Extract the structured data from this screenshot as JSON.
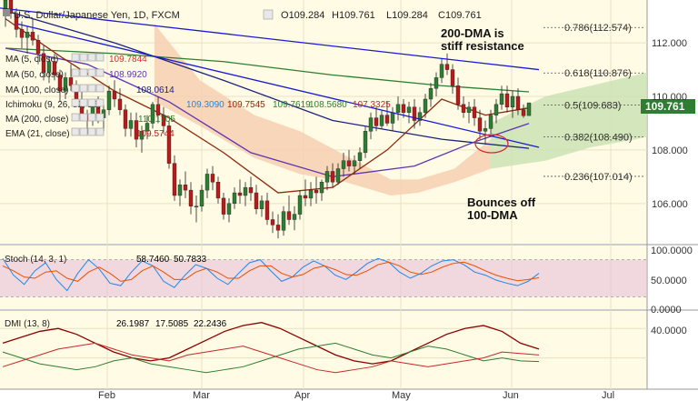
{
  "header": {
    "symbol": "U.S. Dollar/Japanese Yen, 1D, FXCM",
    "ohlc": [
      {
        "label": "O",
        "value": "109.284"
      },
      {
        "label": "H",
        "value": "109.761"
      },
      {
        "label": "L",
        "value": "109.284"
      },
      {
        "label": "C",
        "value": "109.761"
      }
    ]
  },
  "indicators": [
    {
      "label": "MA (5, close)",
      "values": [
        "109.7844"
      ],
      "colors": [
        "#d32f2f"
      ]
    },
    {
      "label": "MA (50, close)",
      "values": [
        "108.9920"
      ],
      "colors": [
        "#5e35b1"
      ]
    },
    {
      "label": "MA (100, close)",
      "values": [
        "108.0614"
      ],
      "colors": [
        "#1a237e"
      ]
    },
    {
      "label": "Ichimoku (9, 26, 52, 26)",
      "values": [
        "109.3090",
        "109.7545",
        "109.7619",
        "108.5680",
        "107.3325"
      ],
      "colors": [
        "#1e88e5",
        "#8d2a0b",
        "#2e7d32",
        "#2e7d32",
        "#c62828"
      ]
    },
    {
      "label": "MA (200, close)",
      "values": [
        "110.1705"
      ],
      "colors": [
        "#2e7d32"
      ]
    },
    {
      "label": "EMA (21, close)",
      "values": [
        "109.5744"
      ],
      "colors": [
        "#b71c1c"
      ]
    }
  ],
  "annotations": {
    "resistance": [
      "200-DMA is",
      "stiff resistance"
    ],
    "bounce": [
      "Bounces off",
      "100-DMA"
    ]
  },
  "fib_levels": [
    {
      "label": "0.786(112.574)",
      "value": 112.574,
      "color": "#333333"
    },
    {
      "label": "0.618(110.876)",
      "value": 110.876,
      "color": "#333333"
    },
    {
      "label": "0.5(109.683)",
      "value": 109.683,
      "color": "#4a7fc1"
    },
    {
      "label": "0.382(108.490)",
      "value": 108.49,
      "color": "#333333"
    },
    {
      "label": "0.236(107.014)",
      "value": 107.014,
      "color": "#333333"
    }
  ],
  "price_badge": "109.761",
  "colors": {
    "background": "#fffbe5",
    "grid": "#e8e2c4",
    "bull_candle": "#2e7d32",
    "bear_candle": "#b71c1c",
    "ma200": "#2e7d32",
    "ma100": "#1a237e",
    "ma50": "#5e35b1",
    "ema21": "#8d2a0b",
    "trendline": "#1a1ad0",
    "cloud_bull": "#cde2b4",
    "cloud_bear": "#f7cfb2",
    "stoch_band": "#e8c1d8",
    "badge": "#2e7d32"
  },
  "stoch": {
    "label": "Stoch (14, 3, 1)",
    "values": [
      "58.7460",
      "50.7833"
    ],
    "value_colors": [
      "#1e88e5",
      "#e65100"
    ],
    "axis_labels": [
      "100.0000",
      "50.0000",
      "0.0000"
    ],
    "band": [
      20,
      80
    ]
  },
  "dmi": {
    "label": "DMI (13, 8)",
    "values": [
      "26.1987",
      "17.5085",
      "22.2436"
    ],
    "value_colors": [
      "#8b0000",
      "#2e7d32",
      "#c62828"
    ],
    "axis_labels": [
      "40.0000"
    ]
  },
  "chart_data": {
    "type": "candlestick",
    "title": "U.S. Dollar/Japanese Yen, 1D, FXCM",
    "x_labels": [
      "Feb",
      "Mar",
      "Apr",
      "May",
      "Jun",
      "Jul"
    ],
    "y_ticks": [
      "112.000",
      "110.000",
      "108.000",
      "106.000"
    ],
    "ylim": [
      104.5,
      113.6
    ],
    "legend_position": "top-left",
    "series": [
      {
        "name": "USD/JPY",
        "ohlc": [
          [
            113.2,
            113.9,
            112.6,
            113.6
          ],
          [
            113.6,
            113.7,
            112.9,
            113.1
          ],
          [
            113.1,
            113.3,
            112.2,
            112.5
          ],
          [
            112.5,
            112.8,
            111.8,
            112.2
          ],
          [
            112.2,
            112.6,
            111.6,
            112.4
          ],
          [
            112.4,
            112.9,
            111.9,
            112.1
          ],
          [
            112.1,
            112.3,
            111.2,
            111.6
          ],
          [
            111.6,
            111.9,
            110.6,
            110.9
          ],
          [
            110.9,
            111.5,
            110.5,
            111.3
          ],
          [
            111.3,
            111.6,
            110.6,
            110.8
          ],
          [
            110.8,
            111.0,
            109.8,
            110.2
          ],
          [
            110.2,
            110.9,
            109.9,
            110.7
          ],
          [
            110.7,
            111.2,
            110.2,
            110.4
          ],
          [
            110.4,
            110.6,
            109.6,
            109.8
          ],
          [
            109.8,
            110.2,
            109.1,
            109.3
          ],
          [
            109.3,
            109.5,
            108.6,
            109.1
          ],
          [
            109.1,
            109.9,
            108.9,
            109.6
          ],
          [
            109.6,
            110.0,
            109.0,
            109.2
          ],
          [
            109.2,
            109.7,
            108.7,
            109.5
          ],
          [
            109.5,
            110.4,
            109.3,
            110.2
          ],
          [
            110.2,
            110.6,
            109.6,
            109.9
          ],
          [
            109.9,
            110.3,
            109.3,
            109.5
          ],
          [
            109.5,
            109.7,
            108.5,
            108.8
          ],
          [
            108.8,
            109.4,
            108.5,
            109.1
          ],
          [
            109.1,
            109.4,
            108.1,
            108.4
          ],
          [
            108.4,
            108.9,
            107.9,
            108.7
          ],
          [
            108.7,
            109.3,
            108.4,
            109.0
          ],
          [
            109.0,
            109.8,
            108.8,
            109.7
          ],
          [
            109.7,
            110.0,
            109.0,
            109.3
          ],
          [
            109.3,
            109.6,
            108.6,
            108.9
          ],
          [
            108.9,
            109.1,
            107.3,
            107.5
          ],
          [
            107.5,
            107.8,
            106.1,
            106.3
          ],
          [
            106.3,
            106.9,
            105.9,
            106.7
          ],
          [
            106.7,
            107.2,
            106.2,
            106.5
          ],
          [
            106.5,
            106.8,
            105.6,
            105.9
          ],
          [
            105.9,
            106.3,
            105.3,
            105.9
          ],
          [
            105.9,
            106.7,
            105.7,
            106.5
          ],
          [
            106.5,
            107.3,
            106.2,
            107.1
          ],
          [
            107.1,
            107.4,
            106.5,
            106.8
          ],
          [
            106.8,
            107.0,
            106.0,
            106.2
          ],
          [
            106.2,
            106.4,
            105.4,
            105.6
          ],
          [
            105.6,
            106.2,
            105.3,
            106.0
          ],
          [
            106.0,
            106.6,
            105.8,
            106.4
          ],
          [
            106.4,
            106.9,
            106.0,
            106.3
          ],
          [
            106.3,
            106.8,
            105.9,
            106.6
          ],
          [
            106.6,
            107.0,
            106.1,
            106.4
          ],
          [
            106.4,
            106.7,
            105.6,
            105.8
          ],
          [
            105.8,
            106.3,
            105.5,
            106.1
          ],
          [
            106.1,
            106.4,
            105.2,
            105.4
          ],
          [
            105.4,
            105.7,
            104.9,
            105.2
          ],
          [
            105.2,
            105.6,
            104.7,
            105.0
          ],
          [
            105.0,
            105.9,
            104.8,
            105.7
          ],
          [
            105.7,
            106.3,
            105.2,
            105.4
          ],
          [
            105.4,
            105.9,
            105.0,
            105.6
          ],
          [
            105.6,
            106.5,
            105.4,
            106.3
          ],
          [
            106.3,
            106.9,
            105.9,
            106.2
          ],
          [
            106.2,
            106.8,
            105.9,
            106.5
          ],
          [
            106.5,
            107.0,
            106.0,
            106.4
          ],
          [
            106.4,
            106.9,
            106.1,
            106.8
          ],
          [
            106.8,
            107.4,
            106.5,
            107.2
          ],
          [
            107.2,
            107.5,
            106.6,
            106.8
          ],
          [
            106.8,
            107.5,
            106.7,
            107.3
          ],
          [
            107.3,
            107.9,
            107.0,
            107.6
          ],
          [
            107.6,
            108.0,
            107.2,
            107.4
          ],
          [
            107.4,
            107.8,
            107.1,
            107.6
          ],
          [
            107.6,
            108.1,
            107.3,
            107.9
          ],
          [
            107.9,
            108.9,
            107.7,
            108.7
          ],
          [
            108.7,
            109.4,
            108.4,
            109.2
          ],
          [
            109.2,
            109.6,
            108.7,
            108.9
          ],
          [
            108.9,
            109.5,
            108.8,
            109.3
          ],
          [
            109.3,
            109.8,
            108.9,
            109.0
          ],
          [
            109.0,
            109.6,
            108.7,
            109.4
          ],
          [
            109.4,
            110.0,
            109.1,
            109.7
          ],
          [
            109.7,
            109.9,
            109.2,
            109.4
          ],
          [
            109.4,
            109.8,
            109.0,
            109.6
          ],
          [
            109.6,
            109.9,
            108.8,
            109.1
          ],
          [
            109.1,
            109.6,
            108.9,
            109.4
          ],
          [
            109.4,
            110.1,
            109.2,
            109.9
          ],
          [
            109.9,
            110.5,
            109.6,
            110.3
          ],
          [
            110.3,
            110.9,
            110.0,
            110.7
          ],
          [
            110.7,
            111.4,
            110.5,
            111.2
          ],
          [
            111.2,
            111.6,
            110.8,
            111.0
          ],
          [
            111.0,
            111.2,
            110.1,
            110.4
          ],
          [
            110.4,
            110.7,
            109.5,
            109.7
          ],
          [
            109.7,
            110.0,
            109.2,
            109.4
          ],
          [
            109.4,
            109.8,
            109.0,
            109.6
          ],
          [
            109.6,
            109.9,
            108.9,
            109.2
          ],
          [
            109.2,
            109.5,
            108.4,
            108.7
          ],
          [
            108.7,
            109.1,
            108.2,
            108.8
          ],
          [
            108.8,
            109.5,
            108.6,
            109.3
          ],
          [
            109.3,
            109.9,
            109.0,
            109.7
          ],
          [
            109.7,
            110.4,
            109.5,
            110.1
          ],
          [
            110.1,
            110.4,
            109.4,
            109.6
          ],
          [
            109.6,
            110.2,
            109.2,
            110.0
          ],
          [
            110.0,
            110.3,
            109.3,
            109.5
          ],
          [
            109.5,
            109.7,
            109.2,
            109.28
          ],
          [
            109.284,
            109.761,
            109.284,
            109.761
          ]
        ]
      },
      {
        "name": "MA (200, close)",
        "x": [
          0,
          20,
          40,
          60,
          80,
          96
        ],
        "y": [
          111.8,
          111.6,
          111.3,
          110.8,
          110.4,
          110.17
        ]
      },
      {
        "name": "MA (100, close)",
        "x": [
          0,
          20,
          40,
          60,
          80,
          96
        ],
        "y": [
          113.2,
          112.0,
          110.6,
          109.1,
          108.4,
          108.06
        ]
      },
      {
        "name": "MA (50, close)",
        "x": [
          0,
          15,
          30,
          45,
          60,
          75,
          86,
          96
        ],
        "y": [
          111.8,
          111.2,
          109.8,
          107.9,
          107.0,
          107.4,
          108.3,
          108.99
        ]
      },
      {
        "name": "EMA (21, close)",
        "x": [
          0,
          10,
          20,
          30,
          40,
          50,
          60,
          70,
          80,
          88,
          96
        ],
        "y": [
          112.9,
          111.5,
          110.2,
          109.2,
          107.9,
          106.4,
          106.6,
          108.0,
          109.9,
          109.3,
          109.57
        ]
      }
    ],
    "stoch_k": [
      82,
      55,
      40,
      62,
      75,
      48,
      30,
      58,
      80,
      65,
      42,
      38,
      60,
      78,
      70,
      45,
      35,
      55,
      72,
      66,
      50,
      40,
      58,
      75,
      80,
      62,
      45,
      52,
      68,
      78,
      70,
      55,
      48,
      60,
      74,
      82,
      76,
      60,
      50,
      58,
      70,
      78,
      80,
      72,
      60,
      55,
      47,
      42,
      38,
      45,
      58
    ],
    "stoch_d": [
      70,
      62,
      52,
      50,
      60,
      62,
      50,
      45,
      60,
      68,
      58,
      45,
      48,
      62,
      70,
      60,
      48,
      48,
      60,
      66,
      60,
      50,
      50,
      62,
      70,
      70,
      58,
      52,
      56,
      66,
      70,
      64,
      56,
      55,
      62,
      72,
      76,
      70,
      60,
      56,
      60,
      68,
      74,
      76,
      70,
      62,
      55,
      50,
      46,
      48,
      51
    ]
  }
}
